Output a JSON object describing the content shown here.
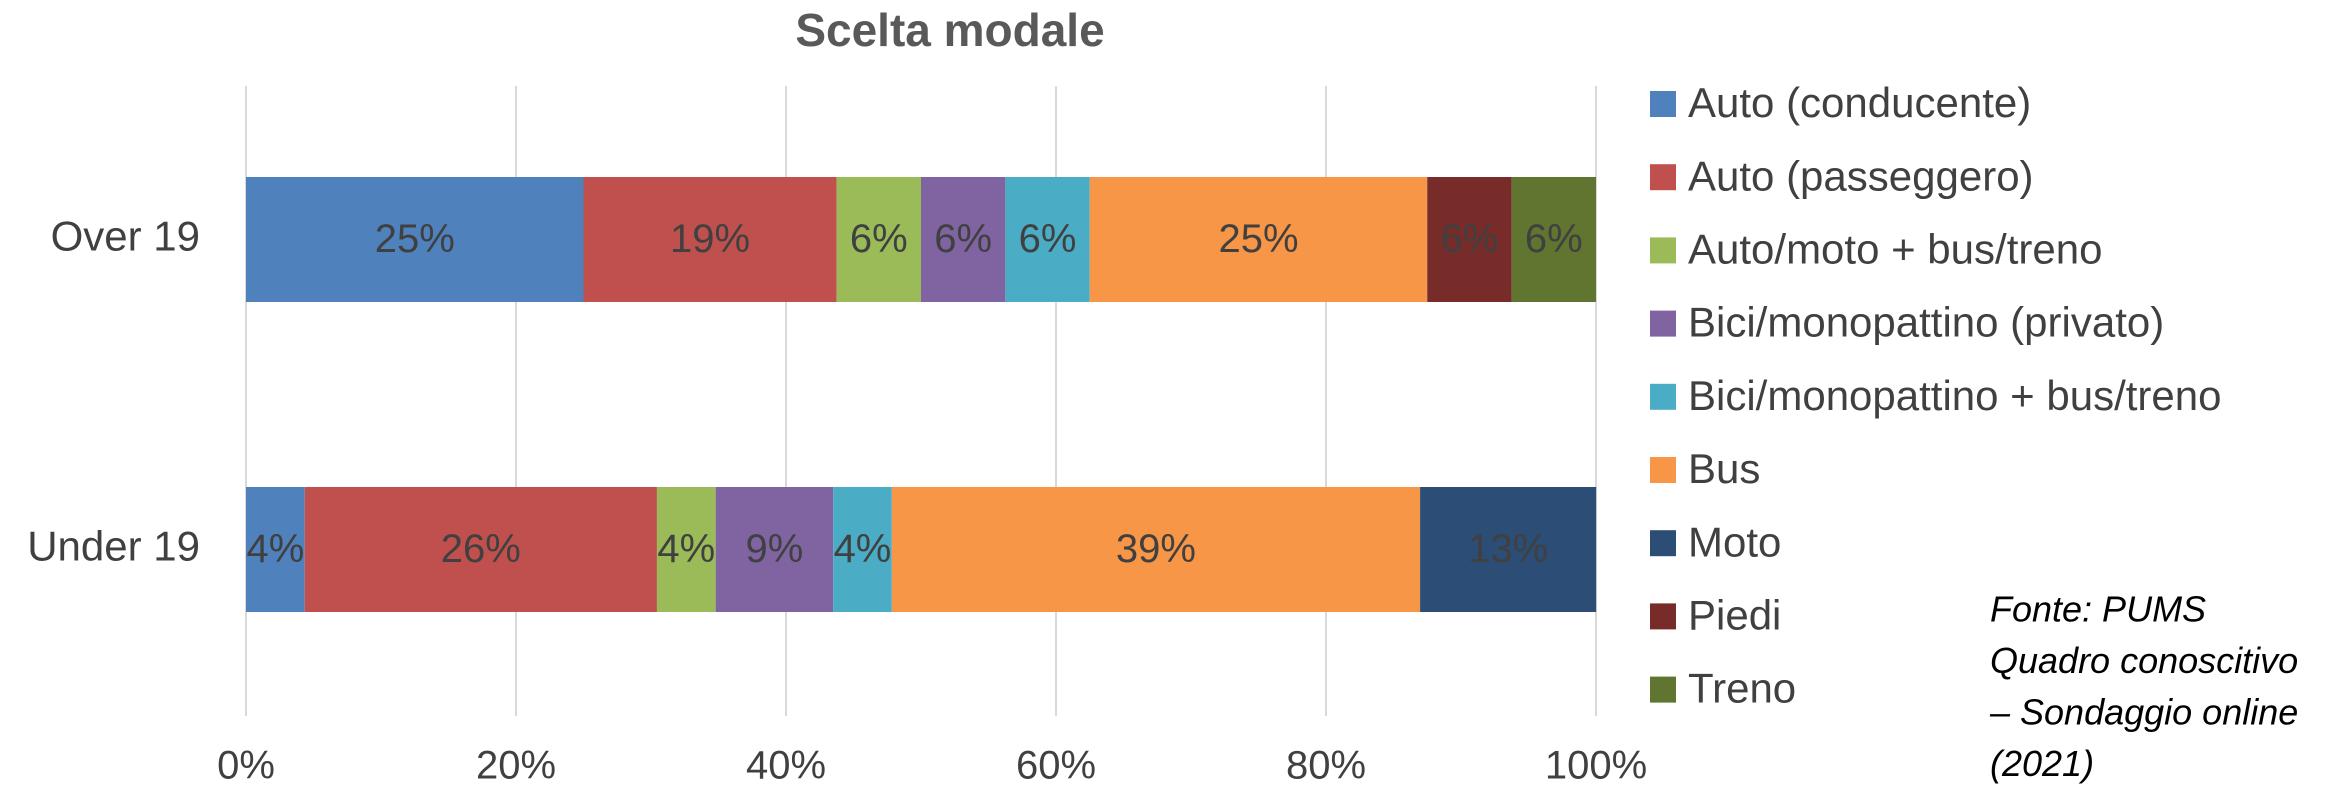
{
  "chart_data": {
    "type": "stacked_barh",
    "title": "Scelta modale",
    "categories": [
      "Over 19",
      "Under 19"
    ],
    "series": [
      {
        "name": "Auto (conducente)",
        "color": "#4f81bd",
        "values": [
          25,
          4.35
        ],
        "value_labels": [
          "25%",
          "4%"
        ]
      },
      {
        "name": "Auto (passeggero)",
        "color": "#c0504d",
        "values": [
          18.75,
          26.09
        ],
        "value_labels": [
          "19%",
          "26%"
        ]
      },
      {
        "name": "Auto/moto + bus/treno",
        "color": "#9bbb59",
        "values": [
          6.25,
          4.35
        ],
        "value_labels": [
          "6%",
          "4%"
        ]
      },
      {
        "name": "Bici/monopattino (privato)",
        "color": "#8064a2",
        "values": [
          6.25,
          8.7
        ],
        "value_labels": [
          "6%",
          "9%"
        ]
      },
      {
        "name": "Bici/monopattino + bus/treno",
        "color": "#4bacc6",
        "values": [
          6.25,
          4.35
        ],
        "value_labels": [
          "6%",
          "4%"
        ]
      },
      {
        "name": "Bus",
        "color": "#f79646",
        "values": [
          25,
          39.13
        ],
        "value_labels": [
          "25%",
          "39%"
        ]
      },
      {
        "name": "Moto",
        "color": "#2c4d75",
        "values": [
          null,
          13.04
        ],
        "value_labels": [
          null,
          "13%"
        ]
      },
      {
        "name": "Piedi",
        "color": "#772c2a",
        "values": [
          6.25,
          null
        ],
        "value_labels": [
          "6%",
          null
        ]
      },
      {
        "name": "Treno",
        "color": "#5f7530",
        "values": [
          6.25,
          null
        ],
        "value_labels": [
          "6%",
          null
        ]
      }
    ],
    "xlim": [
      0,
      100
    ],
    "xticks": [
      {
        "value": 0,
        "label": "0%"
      },
      {
        "value": 20,
        "label": "20%"
      },
      {
        "value": 40,
        "label": "40%"
      },
      {
        "value": 60,
        "label": "60%"
      },
      {
        "value": 80,
        "label": "80%"
      },
      {
        "value": 100,
        "label": "100%"
      }
    ],
    "grid": true,
    "legend": "right",
    "source": [
      "Fonte: PUMS",
      "Quadro conoscitivo",
      "– Sondaggio online",
      "(2021)"
    ]
  }
}
